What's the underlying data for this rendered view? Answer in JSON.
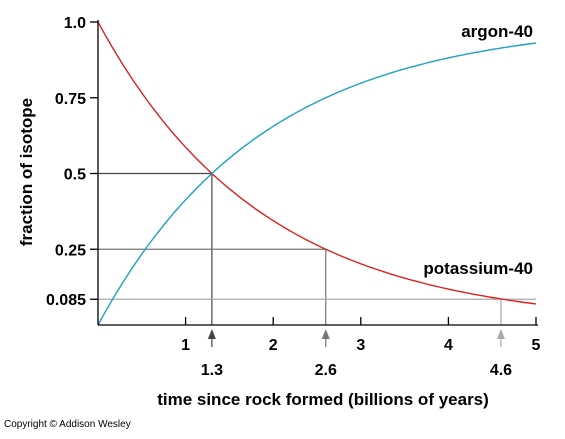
{
  "chart_data": {
    "type": "line",
    "xlabel": "time since rock formed (billions of years)",
    "ylabel": "fraction of isotope",
    "xlim": [
      0,
      5
    ],
    "ylim": [
      0,
      1.0
    ],
    "x_ticks": [
      {
        "value": 1,
        "label": "1"
      },
      {
        "value": 2,
        "label": "2"
      },
      {
        "value": 3,
        "label": "3"
      },
      {
        "value": 4,
        "label": "4"
      },
      {
        "value": 5,
        "label": "5"
      }
    ],
    "y_ticks": [
      {
        "value": 1.0,
        "label": "1.0"
      },
      {
        "value": 0.75,
        "label": "0.75"
      },
      {
        "value": 0.5,
        "label": "0.5"
      },
      {
        "value": 0.25,
        "label": "0.25"
      },
      {
        "value": 0.085,
        "label": "0.085"
      }
    ],
    "half_life": 1.3,
    "series": [
      {
        "name": "potassium-40",
        "color": "#e02020",
        "x": [
          0,
          0.5,
          1.0,
          1.3,
          1.5,
          2.0,
          2.6,
          3.0,
          3.5,
          4.0,
          4.6,
          5.0
        ],
        "values": [
          1.0,
          0.766,
          0.587,
          0.5,
          0.449,
          0.344,
          0.25,
          0.202,
          0.155,
          0.119,
          0.085,
          0.07
        ]
      },
      {
        "name": "argon-40",
        "color": "#1aa3c0",
        "x": [
          0,
          0.5,
          1.0,
          1.3,
          1.5,
          2.0,
          2.6,
          3.0,
          3.5,
          4.0,
          4.6,
          5.0
        ],
        "values": [
          0.0,
          0.234,
          0.413,
          0.5,
          0.551,
          0.656,
          0.75,
          0.798,
          0.845,
          0.881,
          0.915,
          0.93
        ]
      }
    ],
    "markers": [
      {
        "x": 1.3,
        "y": 0.5,
        "label": "1.3",
        "color": "#444444"
      },
      {
        "x": 2.6,
        "y": 0.25,
        "label": "2.6",
        "color": "#777777"
      },
      {
        "x": 4.6,
        "y": 0.085,
        "label": "4.6",
        "color": "#aaaaaa"
      }
    ]
  },
  "copyright": "Copyright © Addison Wesley"
}
